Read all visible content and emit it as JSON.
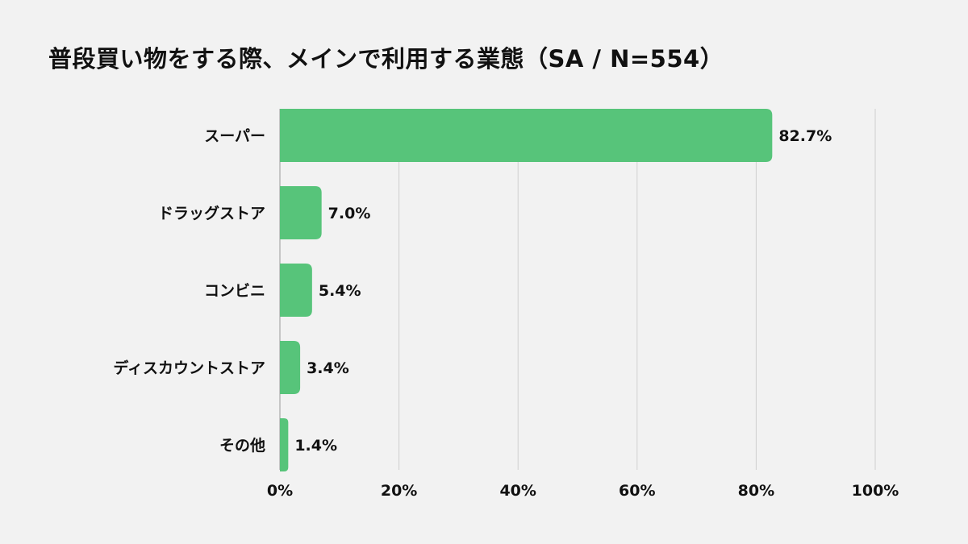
{
  "chart_data": {
    "type": "bar",
    "orientation": "horizontal",
    "title": "普段買い物をする際、メインで利用する業態（SA / N=554）",
    "categories": [
      "スーパー",
      "ドラッグストア",
      "コンビニ",
      "ディスカウントストア",
      "その他"
    ],
    "values": [
      82.7,
      7.0,
      5.4,
      3.4,
      1.4
    ],
    "data_labels": [
      "82.7%",
      "7.0%",
      "5.4%",
      "3.4%",
      "1.4%"
    ],
    "xlim": [
      0,
      100
    ],
    "xticks": [
      "0%",
      "20%",
      "40%",
      "60%",
      "80%",
      "100%"
    ],
    "xlabel": "",
    "ylabel": "",
    "grid": "vertical",
    "bar_color": "#57c47a",
    "background": "#f2f2f2"
  }
}
